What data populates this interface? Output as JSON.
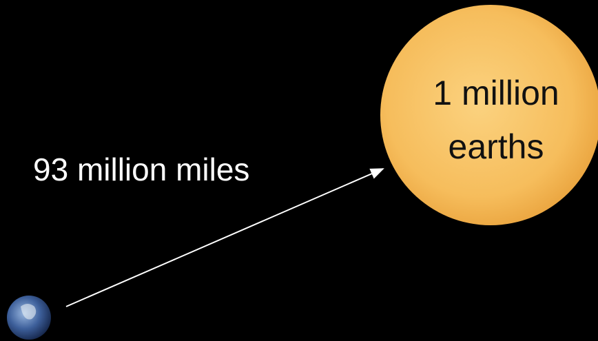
{
  "distance_label": "93 million miles",
  "sun_label": [
    "1 million",
    "earths"
  ]
}
